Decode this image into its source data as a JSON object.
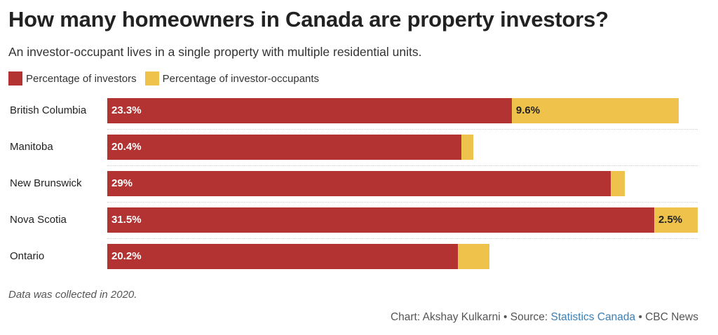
{
  "chart_data": {
    "type": "bar",
    "orientation": "horizontal",
    "stacked": true,
    "title": "How many homeowners in Canada are property investors?",
    "subtitle": "An investor-occupant lives in a single property with multiple residential units.",
    "categories": [
      "British Columbia",
      "Manitoba",
      "New Brunswick",
      "Nova Scotia",
      "Ontario"
    ],
    "series": [
      {
        "name": "Percentage of investors",
        "color": "#b33232",
        "values": [
          23.3,
          20.4,
          29,
          31.5,
          20.2
        ],
        "labels": [
          "23.3%",
          "20.4%",
          "29%",
          "31.5%",
          "20.2%"
        ]
      },
      {
        "name": "Percentage of investor-occupants",
        "color": "#efc34b",
        "values": [
          9.6,
          0.7,
          0.8,
          2.5,
          1.8
        ],
        "labels": [
          "9.6%",
          null,
          null,
          "2.5%",
          null
        ]
      }
    ],
    "xlim": [
      0,
      34
    ],
    "grid": false,
    "legend_position": "top-left",
    "note": "Data was collected in 2020.",
    "credit": {
      "chart": "Chart: Akshay Kulkarni",
      "sep": " • ",
      "source_label": "Source: ",
      "source": "Statistics Canada",
      "publisher": "CBC News"
    }
  }
}
